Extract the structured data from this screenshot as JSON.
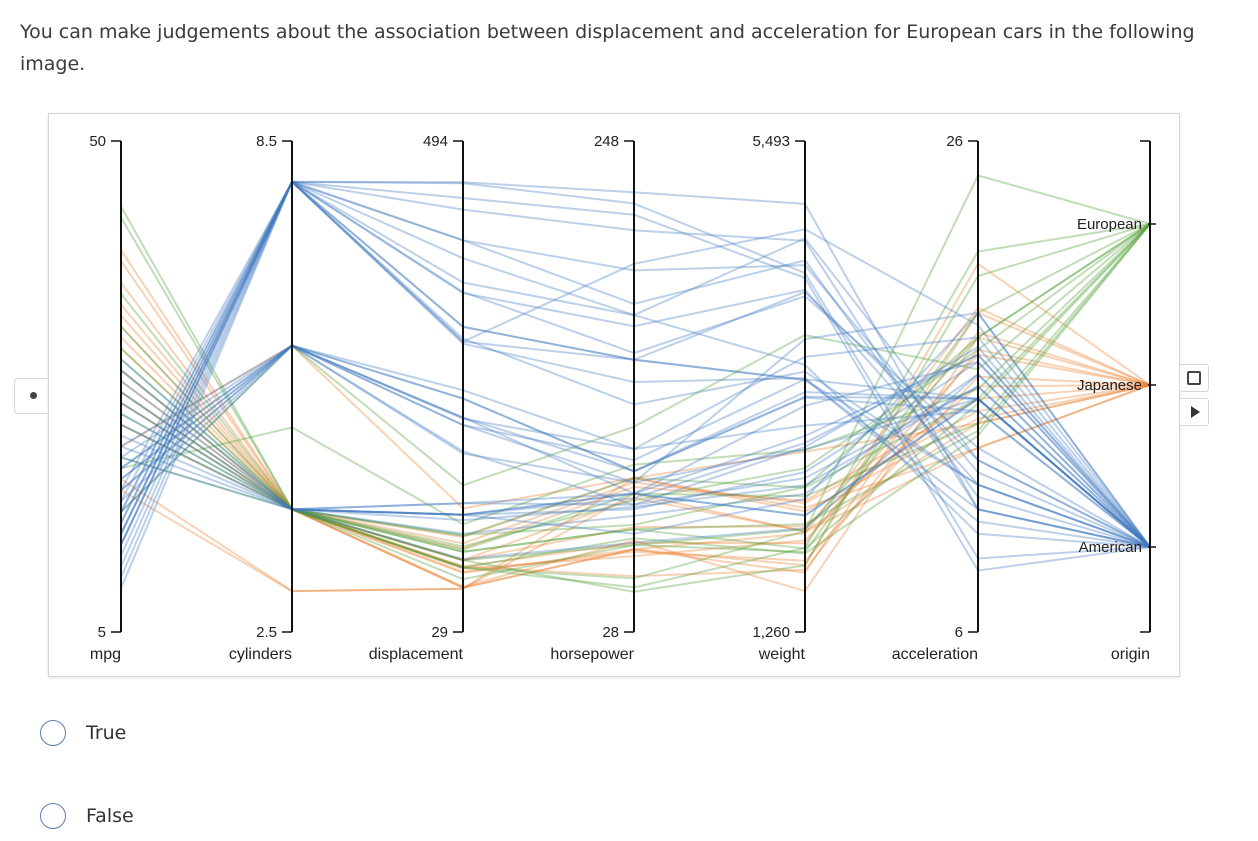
{
  "question": {
    "prompt": "You can make judgements about the association between displacement and acceleration for European cars in the following image."
  },
  "options": [
    {
      "label": "True"
    },
    {
      "label": "False"
    }
  ],
  "controls": {
    "side_button": "dot-icon",
    "stop_button": "stop-icon",
    "play_button": "play-icon"
  },
  "chart_data": {
    "type": "parallel-coordinates",
    "axes": [
      {
        "key": "mpg",
        "label": "mpg",
        "min": 5,
        "max": 50,
        "max_label": "50",
        "min_label": "5"
      },
      {
        "key": "cylinders",
        "label": "cylinders",
        "min": 2.5,
        "max": 8.5,
        "max_label": "8.5",
        "min_label": "2.5"
      },
      {
        "key": "displacement",
        "label": "displacement",
        "min": 29,
        "max": 494,
        "max_label": "494",
        "min_label": "29"
      },
      {
        "key": "horsepower",
        "label": "horsepower",
        "min": 28,
        "max": 248,
        "max_label": "248",
        "min_label": "28"
      },
      {
        "key": "weight",
        "label": "weight",
        "min": 1260,
        "max": 5493,
        "max_label": "5,493",
        "min_label": "1,260"
      },
      {
        "key": "acceleration",
        "label": "acceleration",
        "min": 6,
        "max": 26,
        "max_label": "26",
        "min_label": "6"
      },
      {
        "key": "origin",
        "label": "origin",
        "categories": [
          "European",
          "Japanese",
          "American"
        ]
      }
    ],
    "series": [
      {
        "name": "American",
        "color": "#3e78c0"
      },
      {
        "name": "European",
        "color": "#4e9e33"
      },
      {
        "name": "Japanese",
        "color": "#ea7f2a"
      }
    ],
    "lines": [
      {
        "origin": "American",
        "values": [
          13,
          8,
          350,
          165,
          4209,
          12
        ]
      },
      {
        "origin": "American",
        "values": [
          15,
          8,
          318,
          150,
          3436,
          11
        ]
      },
      {
        "origin": "American",
        "values": [
          14,
          8,
          454,
          220,
          4354,
          9
        ]
      },
      {
        "origin": "American",
        "values": [
          12,
          8,
          455,
          225,
          4951,
          11
        ]
      },
      {
        "origin": "American",
        "values": [
          16,
          8,
          304,
          150,
          3433,
          12
        ]
      },
      {
        "origin": "American",
        "values": [
          14,
          8,
          400,
          175,
          4464,
          11.5
        ]
      },
      {
        "origin": "American",
        "values": [
          13,
          8,
          360,
          170,
          4654,
          13
        ]
      },
      {
        "origin": "American",
        "values": [
          11,
          8,
          429,
          208,
          4633,
          11
        ]
      },
      {
        "origin": "American",
        "values": [
          17,
          8,
          302,
          140,
          3449,
          10.5
        ]
      },
      {
        "origin": "American",
        "values": [
          15,
          8,
          383,
          170,
          3563,
          10
        ]
      },
      {
        "origin": "American",
        "values": [
          18,
          8,
          307,
          130,
          3504,
          12
        ]
      },
      {
        "origin": "American",
        "values": [
          10,
          8,
          440,
          215,
          4312,
          8.5
        ]
      },
      {
        "origin": "American",
        "values": [
          13,
          8,
          400,
          190,
          4422,
          12.5
        ]
      },
      {
        "origin": "American",
        "values": [
          9,
          8,
          304,
          193,
          4732,
          18.5
        ]
      },
      {
        "origin": "American",
        "values": [
          14,
          8,
          351,
          153,
          4154,
          13.5
        ]
      },
      {
        "origin": "American",
        "values": [
          16,
          8,
          318,
          150,
          4190,
          13
        ]
      },
      {
        "origin": "American",
        "values": [
          19,
          6,
          250,
          100,
          3282,
          15
        ]
      },
      {
        "origin": "American",
        "values": [
          18,
          6,
          232,
          100,
          3288,
          15.5
        ]
      },
      {
        "origin": "American",
        "values": [
          21,
          6,
          200,
          85,
          2587,
          16
        ]
      },
      {
        "origin": "American",
        "values": [
          22,
          6,
          198,
          95,
          2833,
          15.5
        ]
      },
      {
        "origin": "American",
        "values": [
          20,
          6,
          225,
          105,
          3439,
          15.5
        ]
      },
      {
        "origin": "American",
        "values": [
          17,
          6,
          250,
          100,
          3329,
          15.5
        ]
      },
      {
        "origin": "American",
        "values": [
          16,
          6,
          258,
          110,
          3632,
          18
        ]
      },
      {
        "origin": "American",
        "values": [
          19,
          6,
          232,
          90,
          3211,
          17
        ]
      },
      {
        "origin": "American",
        "values": [
          18,
          6,
          225,
          95,
          3785,
          19
        ]
      },
      {
        "origin": "American",
        "values": [
          20,
          6,
          231,
          110,
          3039,
          15
        ]
      },
      {
        "origin": "American",
        "values": [
          24,
          4,
          140,
          90,
          2264,
          15.5
        ]
      },
      {
        "origin": "American",
        "values": [
          26,
          4,
          122,
          80,
          2451,
          16.5
        ]
      },
      {
        "origin": "American",
        "values": [
          22,
          4,
          140,
          72,
          2408,
          19
        ]
      },
      {
        "origin": "American",
        "values": [
          28,
          4,
          140,
          90,
          2264,
          15.5
        ]
      },
      {
        "origin": "American",
        "values": [
          25,
          4,
          151,
          85,
          2855,
          17.6
        ]
      },
      {
        "origin": "American",
        "values": [
          27,
          4,
          151,
          90,
          2950,
          17.3
        ]
      },
      {
        "origin": "American",
        "values": [
          23,
          4,
          140,
          83,
          2639,
          17
        ]
      },
      {
        "origin": "American",
        "values": [
          30,
          4,
          98,
          68,
          2155,
          16.5
        ]
      },
      {
        "origin": "American",
        "values": [
          21,
          4,
          140,
          88,
          2890,
          17.3
        ]
      },
      {
        "origin": "American",
        "values": [
          29,
          4,
          135,
          84,
          2525,
          16
        ]
      },
      {
        "origin": "European",
        "values": [
          26,
          4,
          97,
          46,
          1835,
          20.5
        ]
      },
      {
        "origin": "European",
        "values": [
          25,
          4,
          110,
          87,
          2672,
          17.5
        ]
      },
      {
        "origin": "European",
        "values": [
          24,
          4,
          107,
          90,
          2430,
          14.5
        ]
      },
      {
        "origin": "European",
        "values": [
          29,
          4,
          90,
          70,
          1937,
          14
        ]
      },
      {
        "origin": "European",
        "values": [
          31,
          4,
          79,
          67,
          1950,
          19
        ]
      },
      {
        "origin": "European",
        "values": [
          44,
          4,
          90,
          52,
          2130,
          24.6
        ]
      },
      {
        "origin": "European",
        "values": [
          43,
          4,
          90,
          48,
          1985,
          21.5
        ]
      },
      {
        "origin": "European",
        "values": [
          36,
          4,
          105,
          74,
          1980,
          15.3
        ]
      },
      {
        "origin": "European",
        "values": [
          21,
          4,
          120,
          97,
          2506,
          15.5
        ]
      },
      {
        "origin": "European",
        "values": [
          20,
          5,
          131,
          103,
          2830,
          15.9
        ]
      },
      {
        "origin": "European",
        "values": [
          16,
          6,
          168,
          120,
          3820,
          16.7
        ]
      },
      {
        "origin": "European",
        "values": [
          30,
          4,
          97,
          67,
          2145,
          18
        ]
      },
      {
        "origin": "European",
        "values": [
          27,
          4,
          121,
          76,
          2511,
          18
        ]
      },
      {
        "origin": "European",
        "values": [
          33,
          4,
          105,
          74,
          2190,
          14.2
        ]
      },
      {
        "origin": "Japanese",
        "values": [
          24,
          4,
          113,
          95,
          2372,
          15
        ]
      },
      {
        "origin": "Japanese",
        "values": [
          27,
          4,
          97,
          88,
          2130,
          14.5
        ]
      },
      {
        "origin": "Japanese",
        "values": [
          31,
          4,
          71,
          65,
          1773,
          19
        ]
      },
      {
        "origin": "Japanese",
        "values": [
          32,
          4,
          71,
          65,
          1836,
          21
        ]
      },
      {
        "origin": "Japanese",
        "values": [
          35,
          4,
          72,
          69,
          1613,
          18
        ]
      },
      {
        "origin": "Japanese",
        "values": [
          19,
          3,
          70,
          97,
          2330,
          13.5
        ]
      },
      {
        "origin": "Japanese",
        "values": [
          18,
          3,
          70,
          90,
          2124,
          13.5
        ]
      },
      {
        "origin": "Japanese",
        "values": [
          37,
          4,
          91,
          68,
          2025,
          18.2
        ]
      },
      {
        "origin": "Japanese",
        "values": [
          33,
          4,
          91,
          53,
          1795,
          17.5
        ]
      },
      {
        "origin": "Japanese",
        "values": [
          39,
          4,
          86,
          64,
          1875,
          16.4
        ]
      },
      {
        "origin": "Japanese",
        "values": [
          22,
          6,
          146,
          97,
          2815,
          14.5
        ]
      },
      {
        "origin": "Japanese",
        "values": [
          28,
          4,
          119,
          97,
          2300,
          14.7
        ]
      },
      {
        "origin": "Japanese",
        "values": [
          40,
          4,
          85,
          65,
          2110,
          19.2
        ]
      },
      {
        "origin": "Japanese",
        "values": [
          26,
          4,
          108,
          93,
          2391,
          15.5
        ]
      },
      {
        "origin": "Japanese",
        "values": [
          34,
          4,
          89,
          62,
          2050,
          17.3
        ]
      },
      {
        "origin": "Japanese",
        "values": [
          29,
          4,
          97,
          75,
          2171,
          16
        ]
      }
    ]
  }
}
